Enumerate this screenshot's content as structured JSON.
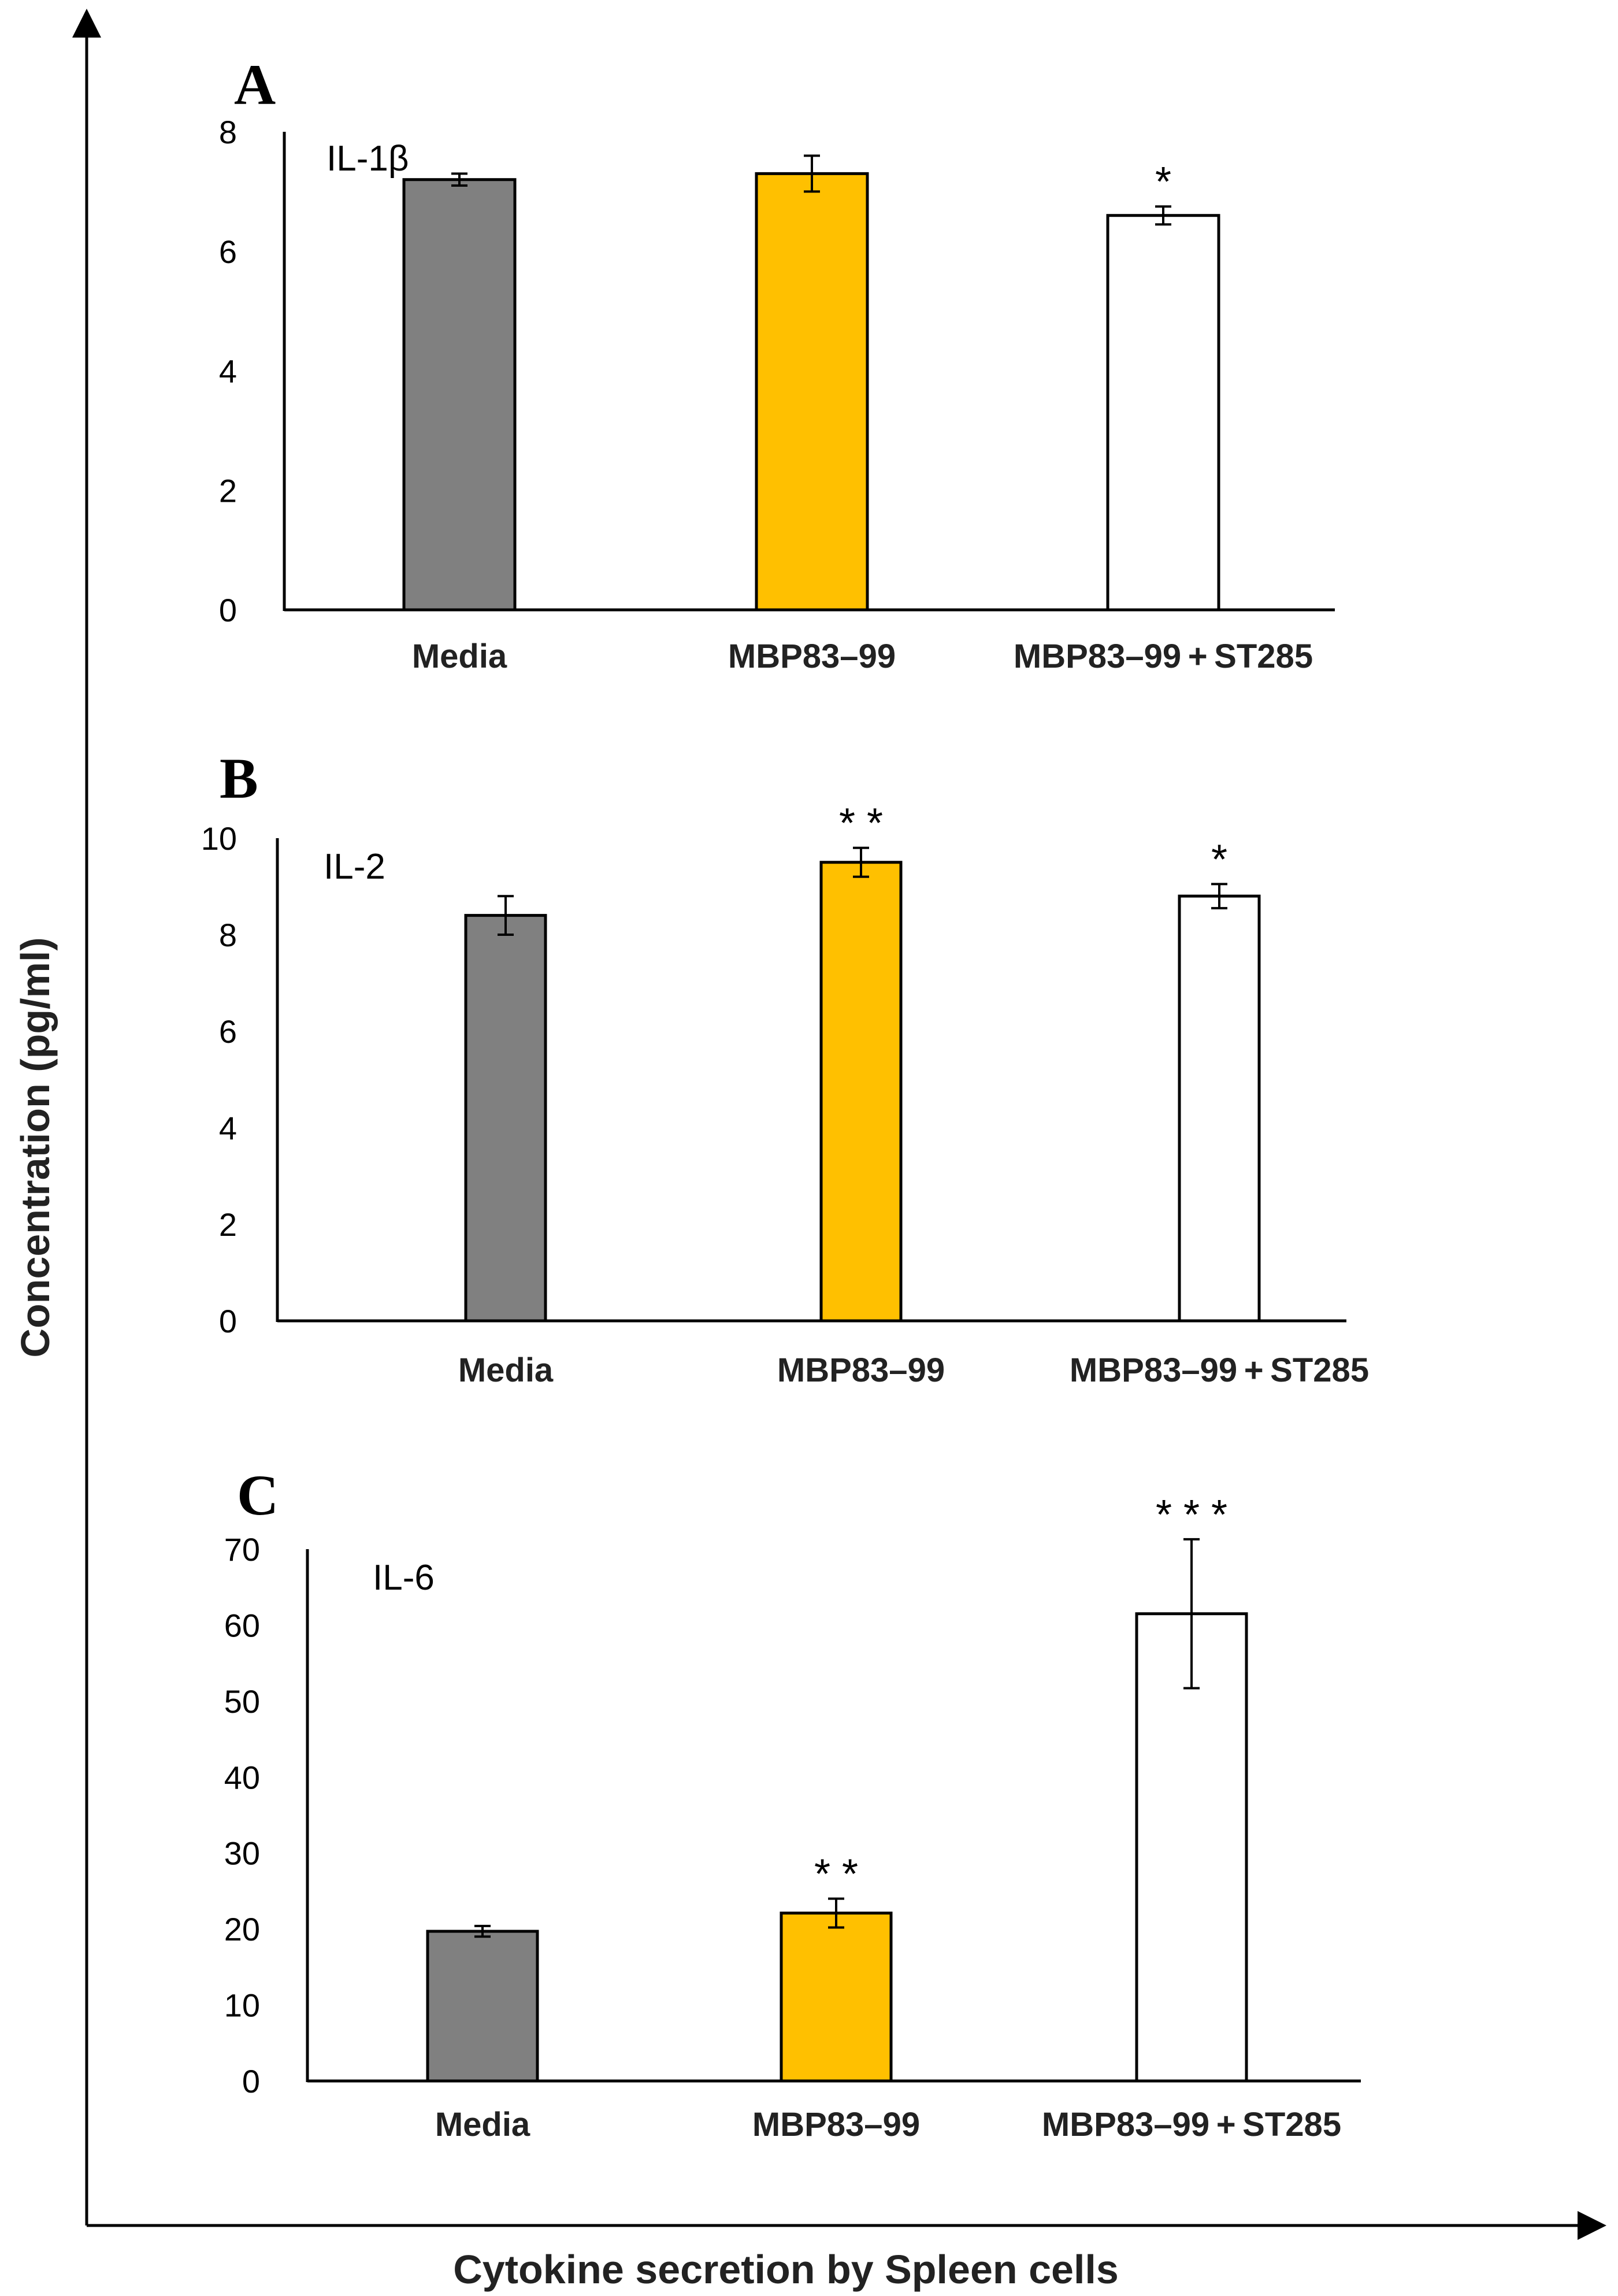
{
  "figure": {
    "y_axis_label": "Concentration (pg/ml)",
    "x_axis_label": "Cytokine secretion by Spleen cells"
  },
  "colors": {
    "Media": "#808080",
    "MBP83–99": "#FFC000",
    "MBP83–99 + ST285": "#FFFFFF",
    "axis": "#000000"
  },
  "chart_data": [
    {
      "type": "bar",
      "panel": "A",
      "title": "IL-1β",
      "categories": [
        "Media",
        "MBP83–99",
        "MBP83–99 + ST285"
      ],
      "values": [
        7.2,
        7.3,
        6.6
      ],
      "errors": [
        0.1,
        0.3,
        0.15
      ],
      "significance": [
        "",
        "",
        "*"
      ],
      "ylim": [
        0,
        8
      ],
      "yticks": [
        0,
        2,
        4,
        6,
        8
      ],
      "xlabel": "",
      "ylabel": ""
    },
    {
      "type": "bar",
      "panel": "B",
      "title": "IL-2",
      "categories": [
        "Media",
        "MBP83–99",
        "MBP83–99 + ST285"
      ],
      "values": [
        8.4,
        9.5,
        8.8
      ],
      "errors": [
        0.4,
        0.3,
        0.25
      ],
      "significance": [
        "",
        "**",
        "*"
      ],
      "ylim": [
        0,
        10
      ],
      "yticks": [
        0,
        2,
        4,
        6,
        8,
        10
      ],
      "xlabel": "",
      "ylabel": ""
    },
    {
      "type": "bar",
      "panel": "C",
      "title": "IL-6",
      "categories": [
        "Media",
        "MBP83–99",
        "MBP83–99 + ST285"
      ],
      "values": [
        19.7,
        22.1,
        61.5
      ],
      "errors": [
        0.7,
        1.9,
        9.8
      ],
      "significance": [
        "",
        "**",
        "***"
      ],
      "ylim": [
        0,
        70
      ],
      "yticks": [
        0,
        10,
        20,
        30,
        40,
        50,
        60,
        70
      ],
      "xlabel": "",
      "ylabel": ""
    }
  ]
}
